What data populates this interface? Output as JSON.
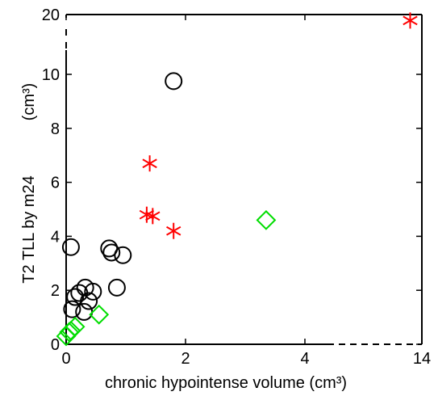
{
  "chart_data": {
    "type": "scatter",
    "title": "",
    "xlabel": "chronic hypointense volume (cm³)",
    "ylabel": "T2 TLL by m24",
    "ylabel_unit": "(cm³)",
    "grid": false,
    "legend": "none",
    "x_axis": {
      "segments": [
        {
          "from": 0,
          "to": 4
        },
        {
          "from": 4,
          "to": 14
        }
      ],
      "break_after": 4,
      "ticks": [
        0,
        2,
        4,
        14
      ],
      "tick_labels": [
        "0",
        "2",
        "4",
        "14"
      ]
    },
    "y_axis": {
      "segments": [
        {
          "from": 0,
          "to": 10
        },
        {
          "from": 10,
          "to": 20
        }
      ],
      "break_after": 10,
      "ticks": [
        0,
        2,
        4,
        6,
        8,
        10,
        20
      ],
      "tick_labels": [
        "0",
        "2",
        "4",
        "6",
        "8",
        "10",
        "20"
      ]
    },
    "series": [
      {
        "marker": "circle",
        "color": "#000000",
        "points": [
          {
            "x": 0.08,
            "y": 3.6
          },
          {
            "x": 0.15,
            "y": 1.75
          },
          {
            "x": 0.1,
            "y": 1.3
          },
          {
            "x": 0.22,
            "y": 1.9
          },
          {
            "x": 0.32,
            "y": 2.1
          },
          {
            "x": 0.38,
            "y": 1.6
          },
          {
            "x": 0.3,
            "y": 1.2
          },
          {
            "x": 0.45,
            "y": 1.95
          },
          {
            "x": 0.72,
            "y": 3.55
          },
          {
            "x": 0.76,
            "y": 3.4
          },
          {
            "x": 0.95,
            "y": 3.3
          },
          {
            "x": 0.85,
            "y": 2.1
          },
          {
            "x": 1.8,
            "y": 9.75
          }
        ]
      },
      {
        "marker": "diamond",
        "color": "#00dd00",
        "points": [
          {
            "x": 0.0,
            "y": 0.3
          },
          {
            "x": 0.05,
            "y": 0.45
          },
          {
            "x": 0.08,
            "y": 0.5
          },
          {
            "x": 0.15,
            "y": 0.65
          },
          {
            "x": 0.55,
            "y": 1.1
          },
          {
            "x": 3.35,
            "y": 4.6
          }
        ]
      },
      {
        "marker": "asterisk",
        "color": "#ff0000",
        "points": [
          {
            "x": 1.4,
            "y": 6.7
          },
          {
            "x": 1.35,
            "y": 4.8
          },
          {
            "x": 1.45,
            "y": 4.75
          },
          {
            "x": 1.8,
            "y": 4.2
          },
          {
            "x": 13.0,
            "y": 19.0
          }
        ]
      }
    ]
  }
}
